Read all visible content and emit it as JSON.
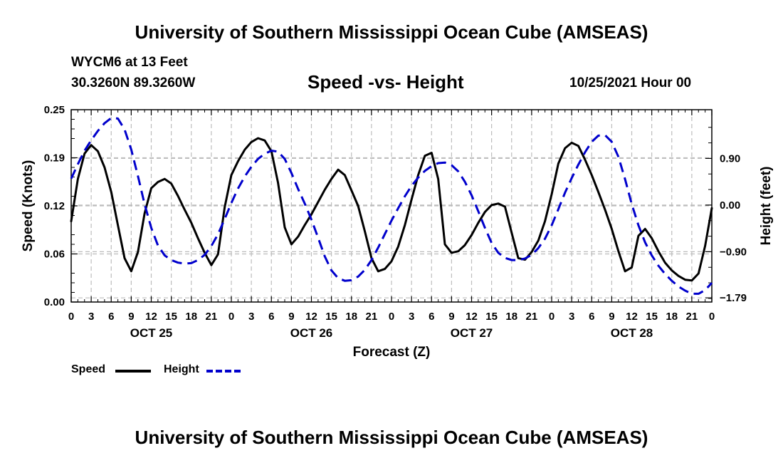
{
  "header": {
    "title": "University of Southern Mississippi Ocean Cube (AMSEAS)",
    "station": "WYCM6 at 13 Feet",
    "coords": "30.3260N  89.3260W",
    "subtitle": "Speed -vs- Height",
    "datetime": "10/25/2021 Hour 00"
  },
  "footer": {
    "title": "University of Southern Mississippi Ocean Cube (AMSEAS)"
  },
  "chart_data": {
    "type": "line",
    "title": "Speed -vs- Height",
    "xlabel": "Forecast (Z)",
    "ylabel": "Speed (Knots)",
    "y2label": "Height (feet)",
    "xlim": [
      0,
      96
    ],
    "ylim": [
      0,
      0.25
    ],
    "y2lim": [
      -1.87,
      1.84
    ],
    "x_tick_labels": [
      "0",
      "3",
      "6",
      "9",
      "12",
      "15",
      "18",
      "21",
      "0",
      "3",
      "6",
      "9",
      "12",
      "15",
      "18",
      "21",
      "0",
      "3",
      "6",
      "9",
      "12",
      "15",
      "18",
      "21",
      "0",
      "3",
      "6",
      "9",
      "12",
      "15",
      "18",
      "21",
      "0"
    ],
    "day_labels": [
      "OCT 25",
      "OCT 26",
      "OCT 27",
      "OCT 28"
    ],
    "y_tick_labels": [
      "0.00",
      "0.06",
      "0.12",
      "0.19",
      "0.25"
    ],
    "y_tick_values": [
      0,
      0.0625,
      0.125,
      0.1875,
      0.25
    ],
    "y2_tick_labels": [
      "−1.79",
      "−0.90",
      "0.00",
      "0.90"
    ],
    "y2_tick_values": [
      -1.79,
      -0.9,
      0.0,
      0.9
    ],
    "grid": true,
    "legend": "bottom-left",
    "series": [
      {
        "name": "Speed",
        "axis": "left",
        "color": "#000000",
        "style": "solid",
        "points": [
          [
            0,
            0.105
          ],
          [
            1,
            0.16
          ],
          [
            2,
            0.193
          ],
          [
            3,
            0.204
          ],
          [
            4,
            0.196
          ],
          [
            5,
            0.175
          ],
          [
            6,
            0.143
          ],
          [
            7,
            0.1
          ],
          [
            8,
            0.057
          ],
          [
            9,
            0.04
          ],
          [
            10,
            0.065
          ],
          [
            11,
            0.115
          ],
          [
            12,
            0.148
          ],
          [
            13,
            0.156
          ],
          [
            14,
            0.16
          ],
          [
            15,
            0.154
          ],
          [
            16,
            0.138
          ],
          [
            17,
            0.12
          ],
          [
            18,
            0.103
          ],
          [
            19,
            0.083
          ],
          [
            20,
            0.064
          ],
          [
            21,
            0.048
          ],
          [
            22,
            0.062
          ],
          [
            23,
            0.123
          ],
          [
            24,
            0.165
          ],
          [
            25,
            0.183
          ],
          [
            26,
            0.198
          ],
          [
            27,
            0.208
          ],
          [
            28,
            0.213
          ],
          [
            29,
            0.21
          ],
          [
            30,
            0.196
          ],
          [
            31,
            0.155
          ],
          [
            32,
            0.097
          ],
          [
            33,
            0.075
          ],
          [
            34,
            0.085
          ],
          [
            35,
            0.1
          ],
          [
            36,
            0.114
          ],
          [
            37,
            0.13
          ],
          [
            38,
            0.146
          ],
          [
            39,
            0.16
          ],
          [
            40,
            0.172
          ],
          [
            41,
            0.165
          ],
          [
            42,
            0.145
          ],
          [
            43,
            0.125
          ],
          [
            44,
            0.092
          ],
          [
            45,
            0.057
          ],
          [
            46,
            0.04
          ],
          [
            47,
            0.043
          ],
          [
            48,
            0.053
          ],
          [
            49,
            0.072
          ],
          [
            50,
            0.1
          ],
          [
            51,
            0.133
          ],
          [
            52,
            0.165
          ],
          [
            53,
            0.19
          ],
          [
            54,
            0.194
          ],
          [
            55,
            0.16
          ],
          [
            56,
            0.075
          ],
          [
            57,
            0.064
          ],
          [
            58,
            0.066
          ],
          [
            59,
            0.074
          ],
          [
            60,
            0.087
          ],
          [
            61,
            0.103
          ],
          [
            62,
            0.117
          ],
          [
            63,
            0.126
          ],
          [
            64,
            0.128
          ],
          [
            65,
            0.124
          ],
          [
            66,
            0.09
          ],
          [
            67,
            0.057
          ],
          [
            68,
            0.055
          ],
          [
            69,
            0.065
          ],
          [
            70,
            0.08
          ],
          [
            71,
            0.105
          ],
          [
            72,
            0.14
          ],
          [
            73,
            0.18
          ],
          [
            74,
            0.2
          ],
          [
            75,
            0.207
          ],
          [
            76,
            0.203
          ],
          [
            77,
            0.185
          ],
          [
            78,
            0.165
          ],
          [
            79,
            0.143
          ],
          [
            80,
            0.12
          ],
          [
            81,
            0.095
          ],
          [
            82,
            0.066
          ],
          [
            83,
            0.04
          ],
          [
            84,
            0.045
          ],
          [
            85,
            0.086
          ],
          [
            86,
            0.095
          ],
          [
            87,
            0.083
          ],
          [
            88,
            0.066
          ],
          [
            89,
            0.051
          ],
          [
            90,
            0.041
          ],
          [
            91,
            0.034
          ],
          [
            92,
            0.029
          ],
          [
            93,
            0.028
          ],
          [
            94,
            0.037
          ],
          [
            95,
            0.073
          ],
          [
            96,
            0.122
          ]
        ]
      },
      {
        "name": "Height",
        "axis": "right",
        "color": "#0000cc",
        "style": "dashed",
        "points": [
          [
            0,
            0.51
          ],
          [
            1,
            0.79
          ],
          [
            2,
            1.05
          ],
          [
            3,
            1.25
          ],
          [
            4,
            1.43
          ],
          [
            5,
            1.58
          ],
          [
            6,
            1.68
          ],
          [
            7,
            1.67
          ],
          [
            8,
            1.46
          ],
          [
            9,
            1.07
          ],
          [
            10,
            0.56
          ],
          [
            11,
            0.02
          ],
          [
            12,
            -0.44
          ],
          [
            13,
            -0.78
          ],
          [
            14,
            -0.97
          ],
          [
            15,
            -1.06
          ],
          [
            16,
            -1.11
          ],
          [
            17,
            -1.13
          ],
          [
            18,
            -1.12
          ],
          [
            19,
            -1.06
          ],
          [
            20,
            -0.96
          ],
          [
            21,
            -0.79
          ],
          [
            22,
            -0.56
          ],
          [
            23,
            -0.27
          ],
          [
            24,
            0.04
          ],
          [
            25,
            0.32
          ],
          [
            26,
            0.55
          ],
          [
            27,
            0.74
          ],
          [
            28,
            0.89
          ],
          [
            29,
            0.99
          ],
          [
            30,
            1.05
          ],
          [
            31,
            1.03
          ],
          [
            32,
            0.89
          ],
          [
            33,
            0.62
          ],
          [
            34,
            0.31
          ],
          [
            35,
            0.03
          ],
          [
            36,
            -0.28
          ],
          [
            37,
            -0.63
          ],
          [
            38,
            -0.99
          ],
          [
            39,
            -1.26
          ],
          [
            40,
            -1.41
          ],
          [
            41,
            -1.46
          ],
          [
            42,
            -1.45
          ],
          [
            43,
            -1.38
          ],
          [
            44,
            -1.25
          ],
          [
            45,
            -1.06
          ],
          [
            46,
            -0.82
          ],
          [
            47,
            -0.56
          ],
          [
            48,
            -0.3
          ],
          [
            49,
            -0.06
          ],
          [
            50,
            0.17
          ],
          [
            51,
            0.37
          ],
          [
            52,
            0.53
          ],
          [
            53,
            0.66
          ],
          [
            54,
            0.75
          ],
          [
            55,
            0.81
          ],
          [
            56,
            0.82
          ],
          [
            57,
            0.77
          ],
          [
            58,
            0.65
          ],
          [
            59,
            0.45
          ],
          [
            60,
            0.19
          ],
          [
            61,
            -0.12
          ],
          [
            62,
            -0.44
          ],
          [
            63,
            -0.73
          ],
          [
            64,
            -0.92
          ],
          [
            65,
            -1.02
          ],
          [
            66,
            -1.06
          ],
          [
            67,
            -1.06
          ],
          [
            68,
            -1.03
          ],
          [
            69,
            -0.96
          ],
          [
            70,
            -0.83
          ],
          [
            71,
            -0.65
          ],
          [
            72,
            -0.39
          ],
          [
            73,
            -0.08
          ],
          [
            74,
            0.24
          ],
          [
            75,
            0.52
          ],
          [
            76,
            0.78
          ],
          [
            77,
            1.02
          ],
          [
            78,
            1.22
          ],
          [
            79,
            1.34
          ],
          [
            80,
            1.35
          ],
          [
            81,
            1.22
          ],
          [
            82,
            0.93
          ],
          [
            83,
            0.5
          ],
          [
            84,
            0.02
          ],
          [
            85,
            -0.39
          ],
          [
            86,
            -0.72
          ],
          [
            87,
            -0.97
          ],
          [
            88,
            -1.17
          ],
          [
            89,
            -1.33
          ],
          [
            90,
            -1.46
          ],
          [
            91,
            -1.57
          ],
          [
            92,
            -1.65
          ],
          [
            93,
            -1.71
          ],
          [
            94,
            -1.71
          ],
          [
            95,
            -1.64
          ],
          [
            96,
            -1.5
          ]
        ]
      }
    ]
  }
}
